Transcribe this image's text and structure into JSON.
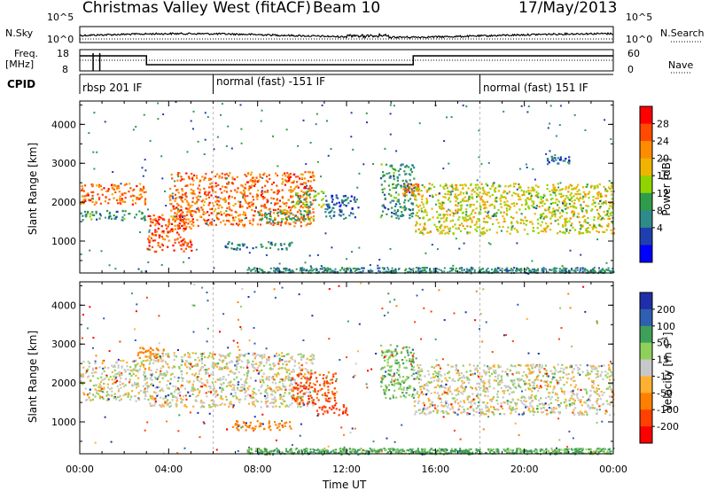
{
  "header": {
    "station_title": "Christmas Valley West (fitACF)",
    "beam_label": "Beam 10",
    "date_label": "17/May/2013"
  },
  "summary_panels": {
    "nsky_label": "N.Sky",
    "nsearch_label": "N.Search",
    "nsky_ticks": [
      "10^5",
      "10^0"
    ],
    "nsky_right_ticks": [
      "10^5",
      "10^0"
    ],
    "freq_label_line1": "Freq.",
    "freq_label_line2": "[MHz]",
    "freq_ticks": [
      "18",
      "8"
    ],
    "nave_label": "Nave",
    "nave_ticks": [
      "60",
      "0"
    ],
    "cpid_label": "CPID"
  },
  "cpid_segments": [
    {
      "label": "rbsp 201 IF",
      "start_hour": 0
    },
    {
      "label": "normal (fast) -151 IF",
      "start_hour": 6
    },
    {
      "label": "normal (fast) 151 IF",
      "start_hour": 18
    }
  ],
  "chart_data": [
    {
      "type": "heatmap",
      "parameter": "Power",
      "ylabel": "Slant Range [km]",
      "xlabel": "Time UT",
      "xlim_hours": [
        0,
        24
      ],
      "ylim_km": [
        180,
        4600
      ],
      "y_ticks": [
        "1000",
        "2000",
        "3000",
        "4000"
      ],
      "x_ticks": [
        "00:00",
        "04:00",
        "08:00",
        "12:00",
        "16:00",
        "20:00",
        "00:00"
      ],
      "colorbar_label": "Power [dB]",
      "colorbar_ticks": [
        "28",
        "24",
        "20",
        "16",
        "12",
        "8",
        "4"
      ],
      "colorbar_colors": [
        "#ff0000",
        "#ff4a00",
        "#ff8c00",
        "#f0b400",
        "#8fd400",
        "#2e9c4a",
        "#2f8a8a",
        "#1f3fb0",
        "#0000ff"
      ],
      "echo_regions": [
        {
          "t0": 0.0,
          "t1": 3.0,
          "r0": 1950,
          "r1": 2500,
          "power_db": 26
        },
        {
          "t0": 0.0,
          "t1": 3.0,
          "r0": 1550,
          "r1": 1800,
          "power_db": 10
        },
        {
          "t0": 3.0,
          "t1": 5.0,
          "r0": 750,
          "r1": 1700,
          "power_db": 28
        },
        {
          "t0": 4.0,
          "t1": 10.5,
          "r0": 1400,
          "r1": 2800,
          "power_db": 26
        },
        {
          "t0": 8.0,
          "t1": 10.5,
          "r0": 1500,
          "r1": 1800,
          "power_db": 12
        },
        {
          "t0": 6.5,
          "t1": 9.5,
          "r0": 800,
          "r1": 1000,
          "power_db": 9
        },
        {
          "t0": 9.5,
          "t1": 11.0,
          "r0": 1900,
          "r1": 2300,
          "power_db": 14
        },
        {
          "t0": 11.0,
          "t1": 12.5,
          "r0": 1600,
          "r1": 2200,
          "power_db": 6
        },
        {
          "t0": 13.5,
          "t1": 15.0,
          "r0": 1600,
          "r1": 3000,
          "power_db": 10
        },
        {
          "t0": 14.5,
          "t1": 15.2,
          "r0": 2200,
          "r1": 2500,
          "power_db": 26
        },
        {
          "t0": 15.0,
          "t1": 24.0,
          "r0": 1200,
          "r1": 2500,
          "power_db": 18
        },
        {
          "t0": 21.0,
          "t1": 22.0,
          "r0": 3000,
          "r1": 3200,
          "power_db": 6
        }
      ]
    },
    {
      "type": "heatmap",
      "parameter": "Velocity",
      "ylabel": "Slant Range [km]",
      "xlabel": "Time UT",
      "xlim_hours": [
        0,
        24
      ],
      "ylim_km": [
        180,
        4600
      ],
      "y_ticks": [
        "1000",
        "2000",
        "3000",
        "4000"
      ],
      "x_ticks": [
        "00:00",
        "04:00",
        "08:00",
        "12:00",
        "16:00",
        "20:00",
        "00:00"
      ],
      "colorbar_label": "Velocity [m s",
      "colorbar_label_exponent": "-1",
      "colorbar_label_close": "]",
      "colorbar_ticks": [
        "200",
        "100",
        "50",
        "15",
        "-15",
        "-50",
        "-100",
        "-200"
      ],
      "colorbar_colors": [
        "#1f2fa8",
        "#2f5fb0",
        "#3fa05a",
        "#8fd05a",
        "#c8c8c8",
        "#ffb030",
        "#ff8000",
        "#ff4000",
        "#ff0000"
      ],
      "echo_regions": [
        {
          "t0": 0.0,
          "t1": 3.0,
          "r0": 1550,
          "r1": 2600,
          "velocity": 0
        },
        {
          "t0": 3.0,
          "t1": 10.5,
          "r0": 1400,
          "r1": 2800,
          "velocity": 0
        },
        {
          "t0": 2.5,
          "t1": 4.0,
          "r0": 2650,
          "r1": 2950,
          "velocity": -40
        },
        {
          "t0": 6.5,
          "t1": 9.5,
          "r0": 800,
          "r1": 1050,
          "velocity": -60
        },
        {
          "t0": 9.5,
          "t1": 11.5,
          "r0": 1500,
          "r1": 2300,
          "velocity": -80
        },
        {
          "t0": 10.5,
          "t1": 12.0,
          "r0": 1200,
          "r1": 1500,
          "velocity": -90
        },
        {
          "t0": 13.5,
          "t1": 15.0,
          "r0": 1600,
          "r1": 3000,
          "velocity": 30
        },
        {
          "t0": 15.0,
          "t1": 24.0,
          "r0": 1200,
          "r1": 2500,
          "velocity": 0
        },
        {
          "t0": 8.0,
          "t1": 23.5,
          "r0": 180,
          "r1": 320,
          "velocity": 40
        }
      ]
    }
  ]
}
